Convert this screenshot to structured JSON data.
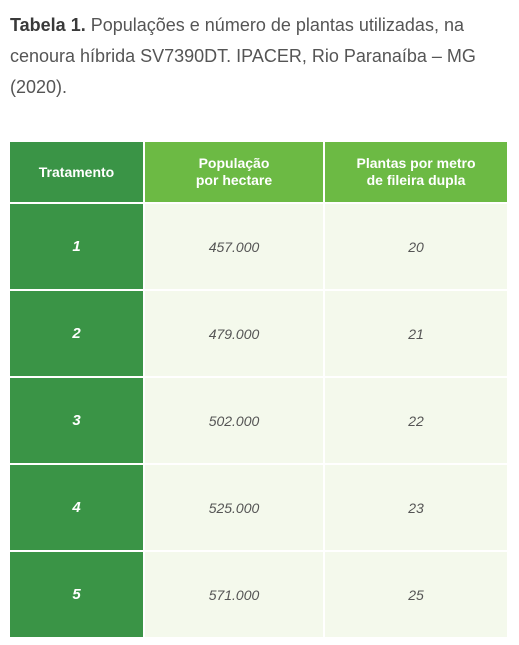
{
  "caption": {
    "label": "Tabela 1.",
    "text": "Populações e número de plantas utilizadas, na cenoura híbrida SV7390DT. IPACER, Rio Paranaíba – MG (2020)."
  },
  "table": {
    "headers": {
      "tratamento": "Tratamento",
      "populacao_l1": "População",
      "populacao_l2": "por hectare",
      "plantas_l1": "Plantas por metro",
      "plantas_l2": "de fileira dupla"
    },
    "rows": [
      {
        "tratamento": "1",
        "populacao": "457.000",
        "plantas": "20"
      },
      {
        "tratamento": "2",
        "populacao": "479.000",
        "plantas": "21"
      },
      {
        "tratamento": "3",
        "populacao": "502.000",
        "plantas": "22"
      },
      {
        "tratamento": "4",
        "populacao": "525.000",
        "plantas": "23"
      },
      {
        "tratamento": "5",
        "populacao": "571.000",
        "plantas": "25"
      }
    ]
  },
  "colors": {
    "dark_green": "#3a9446",
    "light_green": "#6cba44",
    "cell_background": "#f4f9ec"
  }
}
